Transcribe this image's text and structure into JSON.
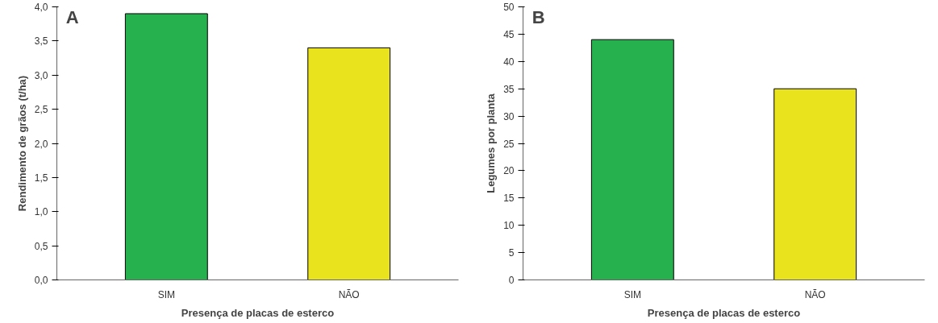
{
  "chart_data": [
    {
      "type": "bar",
      "title": "A",
      "categories": [
        "SIM",
        "NÃO"
      ],
      "values": [
        3.9,
        3.4
      ],
      "colors": [
        "#27b04e",
        "#e8e31c"
      ],
      "xlabel": "Presença de placas de esterco",
      "ylabel": "Rendimento de grãos (t/ha)",
      "ylim": [
        0,
        4
      ],
      "yticks": [
        {
          "value": 0,
          "label": "0,0"
        },
        {
          "value": 0.5,
          "label": "0,5"
        },
        {
          "value": 1,
          "label": "1,0"
        },
        {
          "value": 1.5,
          "label": "1,5"
        },
        {
          "value": 2,
          "label": "2,0"
        },
        {
          "value": 2.5,
          "label": "2,5"
        },
        {
          "value": 3,
          "label": "3,0"
        },
        {
          "value": 3.5,
          "label": "3,5"
        },
        {
          "value": 4,
          "label": "4,0"
        }
      ],
      "grid": false
    },
    {
      "type": "bar",
      "title": "B",
      "categories": [
        "SIM",
        "NÃO"
      ],
      "values": [
        44,
        35
      ],
      "colors": [
        "#27b04e",
        "#e8e31c"
      ],
      "xlabel": "Presença de placas de esterco",
      "ylabel": "Legumes por planta",
      "ylim": [
        0,
        50
      ],
      "yticks": [
        0,
        5,
        10,
        15,
        20,
        25,
        30,
        35,
        40,
        45,
        50
      ],
      "grid": false
    }
  ]
}
